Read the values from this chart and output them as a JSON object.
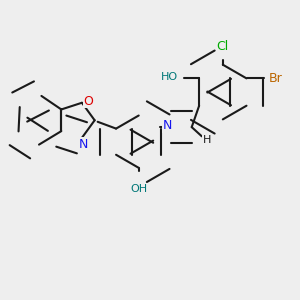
{
  "bg": "#eeeeee",
  "bc": "#1a1a1a",
  "bw": 1.5,
  "sep": 0.055,
  "colors": {
    "N": "#1515ee",
    "O": "#dd0000",
    "Br": "#bb6600",
    "Cl": "#00aa00",
    "HO": "#007777",
    "H": "#1a1a1a"
  },
  "fs": 8.0,
  "figsize": [
    3.0,
    3.0
  ],
  "dpi": 100
}
